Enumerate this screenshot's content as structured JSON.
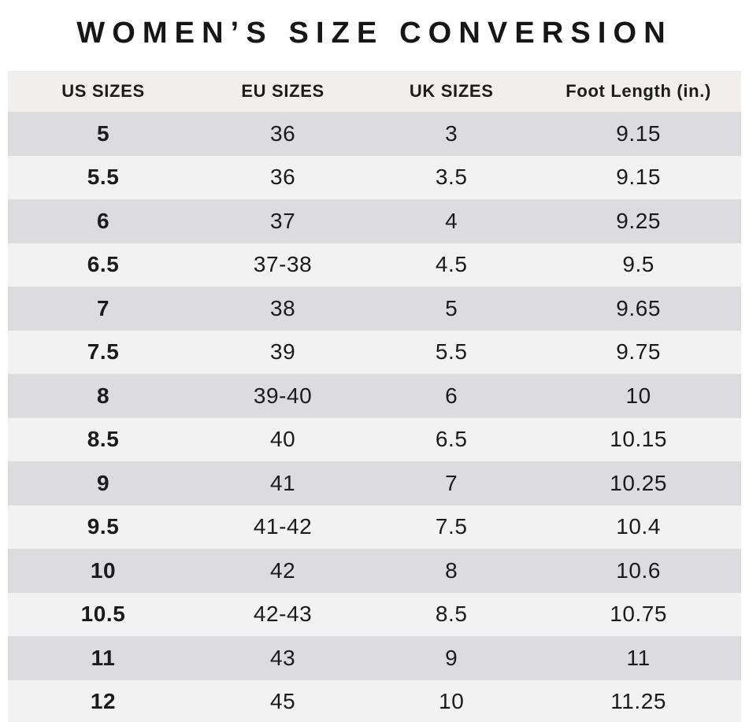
{
  "title": "WOMEN’S SIZE CONVERSION",
  "chart_data": {
    "type": "table",
    "title": "WOMEN’S SIZE CONVERSION",
    "columns": [
      "US SIZES",
      "EU SIZES",
      "UK SIZES",
      "Foot Length (in.)"
    ],
    "rows": [
      [
        "5",
        "36",
        "3",
        "9.15"
      ],
      [
        "5.5",
        "36",
        "3.5",
        "9.15"
      ],
      [
        "6",
        "37",
        "4",
        "9.25"
      ],
      [
        "6.5",
        "37-38",
        "4.5",
        "9.5"
      ],
      [
        "7",
        "38",
        "5",
        "9.65"
      ],
      [
        "7.5",
        "39",
        "5.5",
        "9.75"
      ],
      [
        "8",
        "39-40",
        "6",
        "10"
      ],
      [
        "8.5",
        "40",
        "6.5",
        "10.15"
      ],
      [
        "9",
        "41",
        "7",
        "10.25"
      ],
      [
        "9.5",
        "41-42",
        "7.5",
        "10.4"
      ],
      [
        "10",
        "42",
        "8",
        "10.6"
      ],
      [
        "10.5",
        "42-43",
        "8.5",
        "10.75"
      ],
      [
        "11",
        "43",
        "9",
        "11"
      ],
      [
        "12",
        "45",
        "10",
        "11.25"
      ]
    ],
    "layout": {
      "first_data_row_shade": "dark",
      "striping": "alternating"
    }
  },
  "colors": {
    "background": "#ffffff",
    "header_bg": "#f0efee",
    "row_dark": "#dcdcde",
    "row_light": "#f2f2f2",
    "text": "#1b1b1b"
  }
}
